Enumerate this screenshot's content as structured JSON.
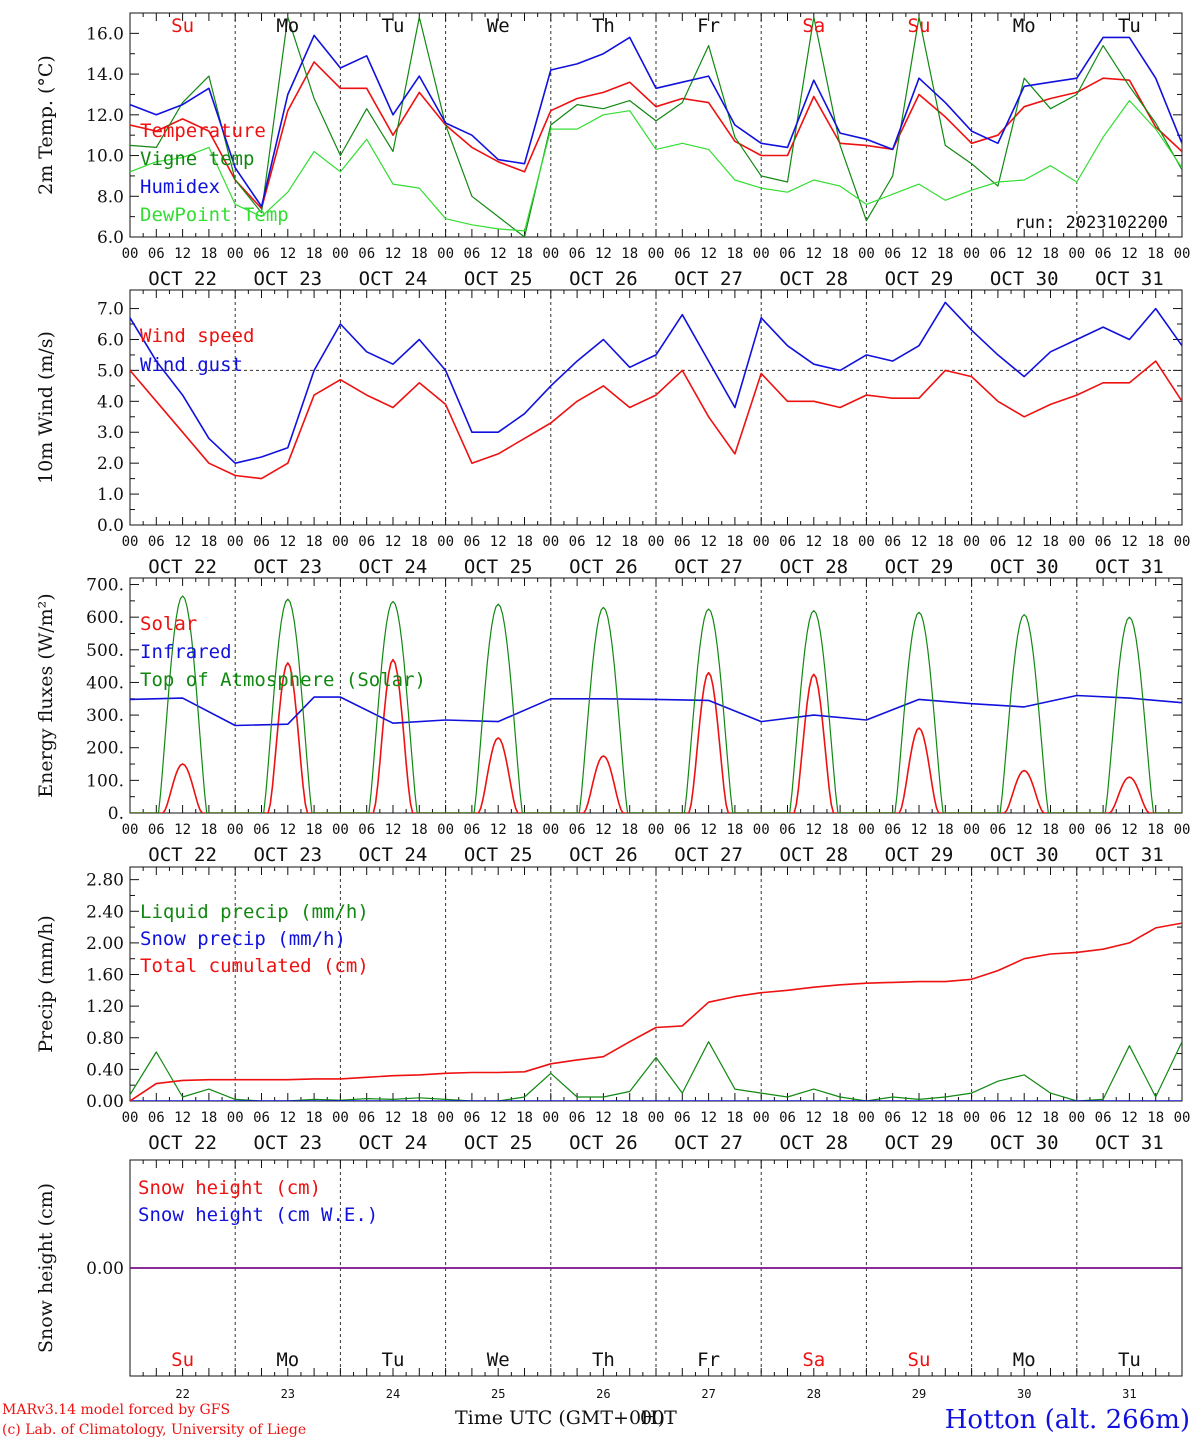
{
  "run_label": "run: 2023102200",
  "footer": {
    "credit1": "MARv3.14 model forced by GFS",
    "credit2": "(c) Lab. of Climatology, University of Liege",
    "xlabel": "Time UTC (GMT+0H)",
    "overlap": "00T",
    "station": "Hotton (alt. 266m)"
  },
  "days": [
    {
      "abbr": "Su",
      "date": "OCT 22",
      "num": "22",
      "weekend": true
    },
    {
      "abbr": "Mo",
      "date": "OCT 23",
      "num": "23",
      "weekend": false
    },
    {
      "abbr": "Tu",
      "date": "OCT 24",
      "num": "24",
      "weekend": false
    },
    {
      "abbr": "We",
      "date": "OCT 25",
      "num": "25",
      "weekend": false
    },
    {
      "abbr": "Th",
      "date": "OCT 26",
      "num": "26",
      "weekend": false
    },
    {
      "abbr": "Fr",
      "date": "OCT 27",
      "num": "27",
      "weekend": false
    },
    {
      "abbr": "Sa",
      "date": "OCT 28",
      "num": "28",
      "weekend": true
    },
    {
      "abbr": "Su",
      "date": "OCT 29",
      "num": "29",
      "weekend": true
    },
    {
      "abbr": "Mo",
      "date": "OCT 30",
      "num": "30",
      "weekend": false
    },
    {
      "abbr": "Tu",
      "date": "OCT 31",
      "num": "31",
      "weekend": false
    }
  ],
  "hour_ticks": [
    "00",
    "06",
    "12",
    "18"
  ],
  "colors": {
    "red": "#ee1111",
    "dkgreen": "#118811",
    "blue": "#1111dd",
    "ltgreen": "#33dd33",
    "purple": "#771188",
    "weekend": "#ee1111",
    "weekday": "#111111"
  },
  "chart_data": [
    {
      "type": "line",
      "ylabel": "2m Temp. (°C)",
      "ylim": [
        6,
        17
      ],
      "yticks": [
        6,
        8,
        10,
        12,
        14,
        16
      ],
      "ytick_labels": [
        "6.0",
        "8.0",
        "10.0",
        "12.0",
        "14.0",
        "16.0"
      ],
      "x_hours": [
        0,
        6,
        12,
        18,
        24,
        30,
        36,
        42,
        48,
        54,
        60,
        66,
        72,
        78,
        84,
        90,
        96,
        102,
        108,
        114,
        120,
        126,
        132,
        138,
        144,
        150,
        156,
        162,
        168,
        174,
        180,
        186,
        192,
        198,
        204,
        210,
        216,
        222,
        228,
        234,
        240
      ],
      "series": [
        {
          "name": "Temperature",
          "color": "red",
          "values": [
            11.5,
            11.2,
            11.8,
            11.2,
            8.8,
            7.4,
            12.2,
            14.6,
            13.3,
            13.3,
            11.0,
            13.1,
            11.5,
            10.4,
            9.7,
            9.2,
            12.2,
            12.8,
            13.1,
            13.6,
            12.4,
            12.8,
            12.6,
            10.7,
            10.0,
            10.0,
            12.9,
            10.6,
            10.5,
            10.3,
            13.0,
            11.9,
            10.6,
            11.0,
            12.4,
            12.8,
            13.1,
            13.8,
            13.7,
            11.4,
            10.2
          ]
        },
        {
          "name": "Vigne temp",
          "color": "dkgreen",
          "values": [
            10.5,
            10.4,
            12.6,
            13.9,
            8.8,
            7.2,
            16.8,
            12.8,
            10.0,
            12.3,
            10.2,
            16.8,
            11.5,
            8.0,
            7.0,
            6.0,
            11.5,
            12.5,
            12.3,
            12.7,
            11.7,
            12.6,
            15.4,
            10.9,
            9.0,
            8.7,
            16.8,
            10.5,
            6.8,
            9.0,
            16.8,
            10.5,
            9.6,
            8.5,
            13.8,
            12.3,
            13.0,
            15.4,
            13.4,
            11.6,
            9.3
          ]
        },
        {
          "name": "Humidex",
          "color": "blue",
          "values": [
            12.5,
            12.0,
            12.5,
            13.3,
            9.4,
            7.5,
            13.0,
            15.9,
            14.3,
            14.9,
            12.0,
            13.9,
            11.6,
            11.0,
            9.8,
            9.6,
            14.2,
            14.5,
            15.0,
            15.8,
            13.3,
            13.6,
            13.9,
            11.5,
            10.6,
            10.4,
            13.7,
            11.1,
            10.8,
            10.3,
            13.8,
            12.6,
            11.2,
            10.6,
            13.4,
            13.6,
            13.8,
            15.8,
            15.8,
            13.8,
            10.6
          ]
        },
        {
          "name": "DewPoint Temp",
          "color": "ltgreen",
          "values": [
            9.2,
            9.7,
            9.9,
            10.4,
            7.6,
            7.0,
            8.2,
            10.2,
            9.2,
            10.8,
            8.6,
            8.4,
            6.9,
            6.6,
            6.4,
            6.3,
            11.3,
            11.3,
            12.0,
            12.2,
            10.3,
            10.6,
            10.3,
            8.8,
            8.4,
            8.2,
            8.8,
            8.5,
            7.6,
            8.1,
            8.6,
            7.8,
            8.3,
            8.7,
            8.8,
            9.5,
            8.7,
            10.9,
            12.7,
            11.3,
            9.4
          ]
        }
      ]
    },
    {
      "type": "line",
      "ylabel": "10m Wind (m/s)",
      "ylim": [
        0,
        7.6
      ],
      "yticks": [
        0,
        1,
        2,
        3,
        4,
        5,
        6,
        7
      ],
      "ytick_labels": [
        "0.0",
        "1.0",
        "2.0",
        "3.0",
        "4.0",
        "5.0",
        "6.0",
        "7.0"
      ],
      "reference_line": 5.0,
      "x_hours": [
        0,
        6,
        12,
        18,
        24,
        30,
        36,
        42,
        48,
        54,
        60,
        66,
        72,
        78,
        84,
        90,
        96,
        102,
        108,
        114,
        120,
        126,
        132,
        138,
        144,
        150,
        156,
        162,
        168,
        174,
        180,
        186,
        192,
        198,
        204,
        210,
        216,
        222,
        228,
        234,
        240
      ],
      "series": [
        {
          "name": "Wind speed",
          "color": "red",
          "values": [
            5.0,
            4.0,
            3.0,
            2.0,
            1.6,
            1.5,
            2.0,
            4.2,
            4.7,
            4.2,
            3.8,
            4.6,
            3.9,
            2.0,
            2.3,
            2.8,
            3.3,
            4.0,
            4.5,
            3.8,
            4.2,
            5.0,
            3.5,
            2.3,
            4.9,
            4.0,
            4.0,
            3.8,
            4.2,
            4.1,
            4.1,
            5.0,
            4.8,
            4.0,
            3.5,
            3.9,
            4.2,
            4.6,
            4.6,
            5.3,
            4.0
          ]
        },
        {
          "name": "Wind gust",
          "color": "blue",
          "values": [
            6.7,
            5.3,
            4.2,
            2.8,
            2.0,
            2.2,
            2.5,
            5.0,
            6.5,
            5.6,
            5.2,
            6.0,
            5.0,
            3.0,
            3.0,
            3.6,
            4.5,
            5.3,
            6.0,
            5.1,
            5.5,
            6.8,
            5.3,
            3.8,
            6.7,
            5.8,
            5.2,
            5.0,
            5.5,
            5.3,
            5.8,
            7.2,
            6.3,
            5.5,
            4.8,
            5.6,
            6.0,
            6.4,
            6.0,
            7.0,
            5.8
          ]
        }
      ]
    },
    {
      "type": "line",
      "ylabel": "Energy fluxes (W/m²)",
      "ylim": [
        0,
        720
      ],
      "yticks": [
        0,
        100,
        200,
        300,
        400,
        500,
        600,
        700
      ],
      "ytick_labels": [
        "0.",
        "100.",
        "200.",
        "300.",
        "400.",
        "500.",
        "600.",
        "700."
      ],
      "series": [
        {
          "name": "Solar",
          "color": "red",
          "day_peaks": [
            150,
            460,
            470,
            230,
            175,
            430,
            425,
            260,
            130,
            110
          ]
        },
        {
          "name": "Infrared",
          "color": "blue",
          "x_hours": [
            0,
            12,
            24,
            36,
            42,
            48,
            60,
            72,
            84,
            96,
            108,
            120,
            132,
            144,
            156,
            168,
            180,
            192,
            204,
            216,
            228,
            240
          ],
          "values": [
            348,
            352,
            268,
            272,
            355,
            355,
            275,
            285,
            280,
            350,
            350,
            348,
            345,
            280,
            300,
            285,
            348,
            335,
            325,
            360,
            352,
            338
          ]
        },
        {
          "name": "Top of Atmosphere (Solar)",
          "color": "dkgreen",
          "day_peaks": [
            665,
            655,
            648,
            640,
            630,
            625,
            620,
            615,
            608,
            600
          ]
        }
      ]
    },
    {
      "type": "line",
      "ylabel": "Precip (mm/h)",
      "ylim": [
        0,
        2.96
      ],
      "yticks": [
        0,
        0.4,
        0.8,
        1.2,
        1.6,
        2.0,
        2.4,
        2.8
      ],
      "ytick_labels": [
        "0.00",
        "0.40",
        "0.80",
        "1.20",
        "1.60",
        "2.00",
        "2.40",
        "2.80"
      ],
      "x_hours": [
        0,
        6,
        12,
        18,
        24,
        30,
        36,
        42,
        48,
        54,
        60,
        66,
        72,
        78,
        84,
        90,
        96,
        102,
        108,
        114,
        120,
        126,
        132,
        138,
        144,
        150,
        156,
        162,
        168,
        174,
        180,
        186,
        192,
        198,
        204,
        210,
        216,
        222,
        228,
        234,
        240
      ],
      "series": [
        {
          "name": "Liquid precip (mm/h)",
          "color": "dkgreen",
          "values": [
            0.08,
            0.62,
            0.05,
            0.15,
            0.02,
            0.0,
            0.0,
            0.02,
            0.01,
            0.03,
            0.02,
            0.04,
            0.02,
            0.0,
            0.0,
            0.05,
            0.35,
            0.05,
            0.05,
            0.12,
            0.55,
            0.1,
            0.75,
            0.15,
            0.1,
            0.05,
            0.15,
            0.05,
            0.0,
            0.05,
            0.02,
            0.05,
            0.1,
            0.25,
            0.33,
            0.1,
            0.0,
            0.02,
            0.7,
            0.05,
            0.75
          ]
        },
        {
          "name": "Snow precip (mm/h)",
          "color": "blue",
          "values": [
            0,
            0,
            0,
            0,
            0,
            0,
            0,
            0,
            0,
            0,
            0,
            0,
            0,
            0,
            0,
            0,
            0,
            0,
            0,
            0,
            0,
            0,
            0,
            0,
            0,
            0,
            0,
            0,
            0,
            0,
            0,
            0,
            0,
            0,
            0,
            0,
            0,
            0,
            0,
            0,
            0
          ]
        },
        {
          "name": "Total cumulated (cm)",
          "color": "red",
          "values": [
            0.0,
            0.22,
            0.26,
            0.27,
            0.27,
            0.27,
            0.27,
            0.28,
            0.28,
            0.3,
            0.32,
            0.33,
            0.35,
            0.36,
            0.36,
            0.37,
            0.47,
            0.52,
            0.56,
            0.75,
            0.93,
            0.95,
            1.25,
            1.32,
            1.37,
            1.4,
            1.44,
            1.47,
            1.49,
            1.5,
            1.51,
            1.51,
            1.54,
            1.65,
            1.8,
            1.86,
            1.88,
            1.92,
            2.0,
            2.19,
            2.25
          ]
        }
      ]
    },
    {
      "type": "line",
      "ylabel": "Snow height (cm)",
      "ylim": [
        -1,
        1
      ],
      "yticks": [
        0
      ],
      "ytick_labels": [
        "0.00"
      ],
      "series": [
        {
          "name": "Snow height (cm)",
          "color": "red",
          "values": [
            0,
            0
          ]
        },
        {
          "name": "Snow height (cm W.E.)",
          "color": "blue",
          "values": [
            0,
            0
          ]
        }
      ]
    }
  ]
}
